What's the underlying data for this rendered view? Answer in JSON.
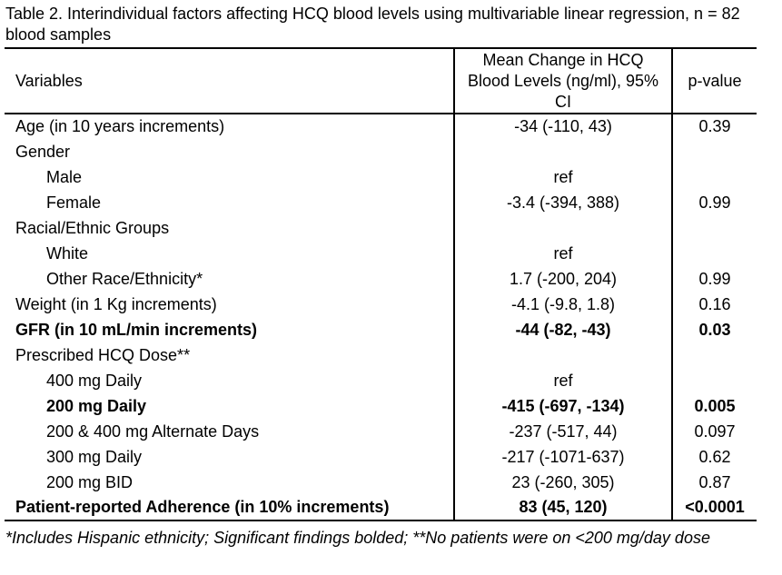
{
  "caption": "Table 2. Interindividual factors affecting HCQ blood levels using multivariable linear regression, n = 82 blood samples",
  "table": {
    "headers": {
      "variables": "Variables",
      "mean_change": "Mean Change in HCQ Blood Levels (ng/ml), 95% CI",
      "p_value": "p-value"
    },
    "rows": [
      {
        "variable": "Age (in 10 years increments)",
        "mean_change": "-34 (-110, 43)",
        "p_value": "0.39",
        "indent": false,
        "bold": false
      },
      {
        "variable": "Gender",
        "mean_change": "",
        "p_value": "",
        "indent": false,
        "bold": false
      },
      {
        "variable": "Male",
        "mean_change": "ref",
        "p_value": "",
        "indent": true,
        "bold": false
      },
      {
        "variable": "Female",
        "mean_change": "-3.4 (-394, 388)",
        "p_value": "0.99",
        "indent": true,
        "bold": false
      },
      {
        "variable": "Racial/Ethnic Groups",
        "mean_change": "",
        "p_value": "",
        "indent": false,
        "bold": false
      },
      {
        "variable": "White",
        "mean_change": "ref",
        "p_value": "",
        "indent": true,
        "bold": false
      },
      {
        "variable": "Other Race/Ethnicity*",
        "mean_change": "1.7 (-200, 204)",
        "p_value": "0.99",
        "indent": true,
        "bold": false
      },
      {
        "variable": "Weight (in 1 Kg increments)",
        "mean_change": "-4.1 (-9.8, 1.8)",
        "p_value": "0.16",
        "indent": false,
        "bold": false
      },
      {
        "variable": "GFR (in 10 mL/min increments)",
        "mean_change": "-44 (-82, -43)",
        "p_value": "0.03",
        "indent": false,
        "bold": true
      },
      {
        "variable": "Prescribed HCQ Dose**",
        "mean_change": "",
        "p_value": "",
        "indent": false,
        "bold": false
      },
      {
        "variable": "400 mg Daily",
        "mean_change": "ref",
        "p_value": "",
        "indent": true,
        "bold": false
      },
      {
        "variable": "200 mg Daily",
        "mean_change": "-415 (-697, -134)",
        "p_value": "0.005",
        "indent": true,
        "bold": true
      },
      {
        "variable": "200 & 400 mg Alternate Days",
        "mean_change": "-237 (-517, 44)",
        "p_value": "0.097",
        "indent": true,
        "bold": false
      },
      {
        "variable": "300 mg Daily",
        "mean_change": "-217 (-1071-637)",
        "p_value": "0.62",
        "indent": true,
        "bold": false
      },
      {
        "variable": "200 mg BID",
        "mean_change": "23 (-260, 305)",
        "p_value": "0.87",
        "indent": true,
        "bold": false
      },
      {
        "variable": "Patient-reported Adherence (in 10% increments)",
        "mean_change": "83 (45, 120)",
        "p_value": "<0.0001",
        "indent": false,
        "bold": true
      }
    ]
  },
  "footnote": "*Includes Hispanic ethnicity; Significant findings bolded; **No patients were on <200 mg/day dose"
}
